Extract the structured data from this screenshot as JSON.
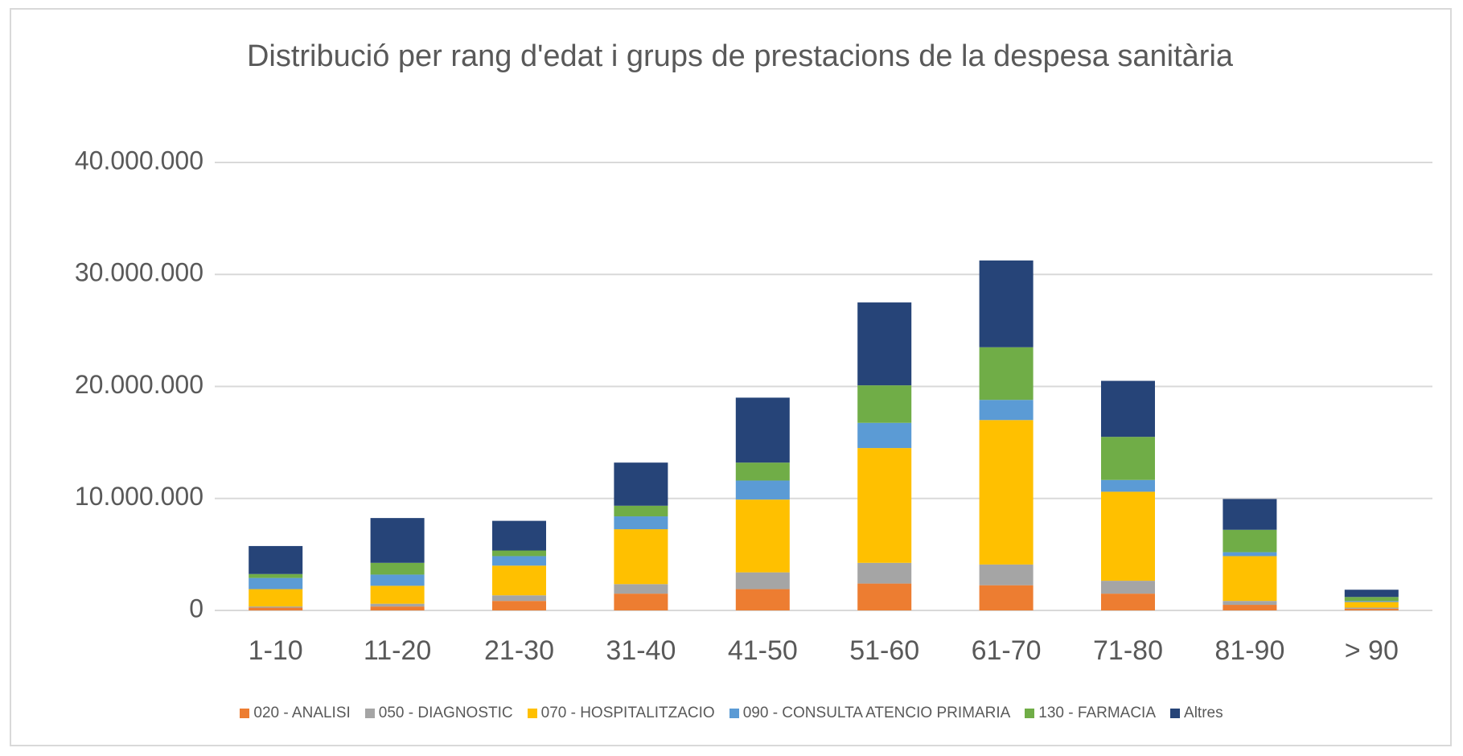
{
  "chart_data": {
    "type": "stacked_bar",
    "title": "Distribució per rang d'edat i grups de prestacions de la despesa sanitària",
    "categories": [
      "1-10",
      "11-20",
      "21-30",
      "31-40",
      "41-50",
      "51-60",
      "61-70",
      "71-80",
      "81-90",
      "> 90"
    ],
    "series": [
      {
        "name": "020 - ANALISI",
        "color": "#ed7d31",
        "values": [
          250000,
          350000,
          850000,
          1500000,
          1900000,
          2400000,
          2250000,
          1500000,
          500000,
          150000
        ]
      },
      {
        "name": "050 - DIAGNOSTIC",
        "color": "#a5a5a5",
        "values": [
          100000,
          250000,
          500000,
          850000,
          1500000,
          1850000,
          1850000,
          1150000,
          350000,
          100000
        ]
      },
      {
        "name": "070 - HOSPITALITZACIO",
        "color": "#ffc000",
        "values": [
          1550000,
          1600000,
          2650000,
          4900000,
          6500000,
          10250000,
          12900000,
          7950000,
          4000000,
          500000
        ]
      },
      {
        "name": "090 - CONSULTA ATENCIO PRIMARIA",
        "color": "#5b9bd5",
        "values": [
          1000000,
          1000000,
          850000,
          1150000,
          1700000,
          2250000,
          1800000,
          1050000,
          350000,
          100000
        ]
      },
      {
        "name": "130 - FARMACIA",
        "color": "#70ad47",
        "values": [
          350000,
          1050000,
          500000,
          950000,
          1600000,
          3350000,
          4700000,
          3850000,
          2000000,
          350000
        ]
      },
      {
        "name": "Altres",
        "color": "#264478",
        "values": [
          2500000,
          4000000,
          2650000,
          3850000,
          5800000,
          7400000,
          7750000,
          5000000,
          2750000,
          650000
        ]
      }
    ],
    "ylim": [
      0,
      40000000
    ],
    "yticks": [
      0,
      {
        "value": 10000000,
        "label": "10.000.000"
      },
      {
        "value": 20000000,
        "label": "20.000.000"
      },
      {
        "value": 30000000,
        "label": "30.000.000"
      },
      {
        "value": 40000000,
        "label": "40.000.000"
      }
    ],
    "grid": true,
    "legend": "bottom"
  }
}
